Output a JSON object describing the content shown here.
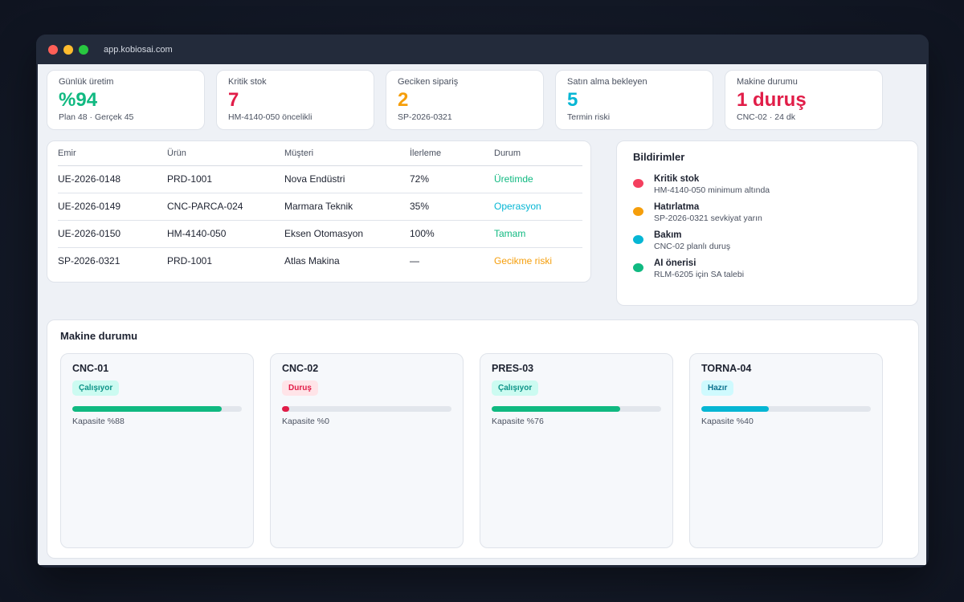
{
  "browser": {
    "url": "app.kobiosai.com"
  },
  "kpis": [
    {
      "label": "Günlük üretim",
      "value": "%94",
      "sub": "Plan 48 · Gerçek 45",
      "color": "#10b981"
    },
    {
      "label": "Kritik stok",
      "value": "7",
      "sub": "HM-4140-050 öncelikli",
      "color": "#e11d48"
    },
    {
      "label": "Geciken sipariş",
      "value": "2",
      "sub": "SP-2026-0321",
      "color": "#f59e0b"
    },
    {
      "label": "Satın alma bekleyen",
      "value": "5",
      "sub": "Termin riski",
      "color": "#06b6d4"
    },
    {
      "label": "Makine durumu",
      "value": "1 duruş",
      "sub": "CNC-02 · 24 dk",
      "color": "#e11d48"
    }
  ],
  "orders": {
    "headers": [
      "Emir",
      "Ürün",
      "Müşteri",
      "İlerleme",
      "Durum"
    ],
    "rows": [
      {
        "emir": "UE-2026-0148",
        "urun": "PRD-1001",
        "musteri": "Nova Endüstri",
        "ilerleme": "72%",
        "durum": "Üretimde",
        "durum_color": "#10b981"
      },
      {
        "emir": "UE-2026-0149",
        "urun": "CNC-PARCA-024",
        "musteri": "Marmara Teknik",
        "ilerleme": "35%",
        "durum": "Operasyon",
        "durum_color": "#06b6d4"
      },
      {
        "emir": "UE-2026-0150",
        "urun": "HM-4140-050",
        "musteri": "Eksen Otomasyon",
        "ilerleme": "100%",
        "durum": "Tamam",
        "durum_color": "#10b981"
      },
      {
        "emir": "SP-2026-0321",
        "urun": "PRD-1001",
        "musteri": "Atlas Makina",
        "ilerleme": "—",
        "durum": "Gecikme riski",
        "durum_color": "#f59e0b"
      }
    ]
  },
  "notifications": {
    "title": "Bildirimler",
    "items": [
      {
        "title": "Kritik stok",
        "desc": "HM-4140-050 minimum altında",
        "color": "#f43f5e"
      },
      {
        "title": "Hatırlatma",
        "desc": "SP-2026-0321 sevkiyat yarın",
        "color": "#f59e0b"
      },
      {
        "title": "Bakım",
        "desc": "CNC-02 planlı duruş",
        "color": "#06b6d4"
      },
      {
        "title": "AI önerisi",
        "desc": "RLM-6205 için SA talebi",
        "color": "#10b981"
      }
    ]
  },
  "machines": {
    "title": "Makine durumu",
    "items": [
      {
        "name": "CNC-01",
        "status": "Çalışıyor",
        "status_color": "#0d9488",
        "status_bg": "#ccfbf1",
        "capacity": 0.88,
        "capacity_label": "Kapasite %88",
        "bar_color": "#10b981"
      },
      {
        "name": "CNC-02",
        "status": "Duruş",
        "status_color": "#e11d48",
        "status_bg": "#ffe4e8",
        "capacity": 0.0,
        "capacity_label": "Kapasite %0",
        "bar_color": "#e11d48"
      },
      {
        "name": "PRES-03",
        "status": "Çalışıyor",
        "status_color": "#0d9488",
        "status_bg": "#ccfbf1",
        "capacity": 0.76,
        "capacity_label": "Kapasite %76",
        "bar_color": "#10b981"
      },
      {
        "name": "TORNA-04",
        "status": "Hazır",
        "status_color": "#0e7490",
        "status_bg": "#cffafe",
        "capacity": 0.4,
        "capacity_label": "Kapasite %40",
        "bar_color": "#06b6d4"
      }
    ]
  }
}
